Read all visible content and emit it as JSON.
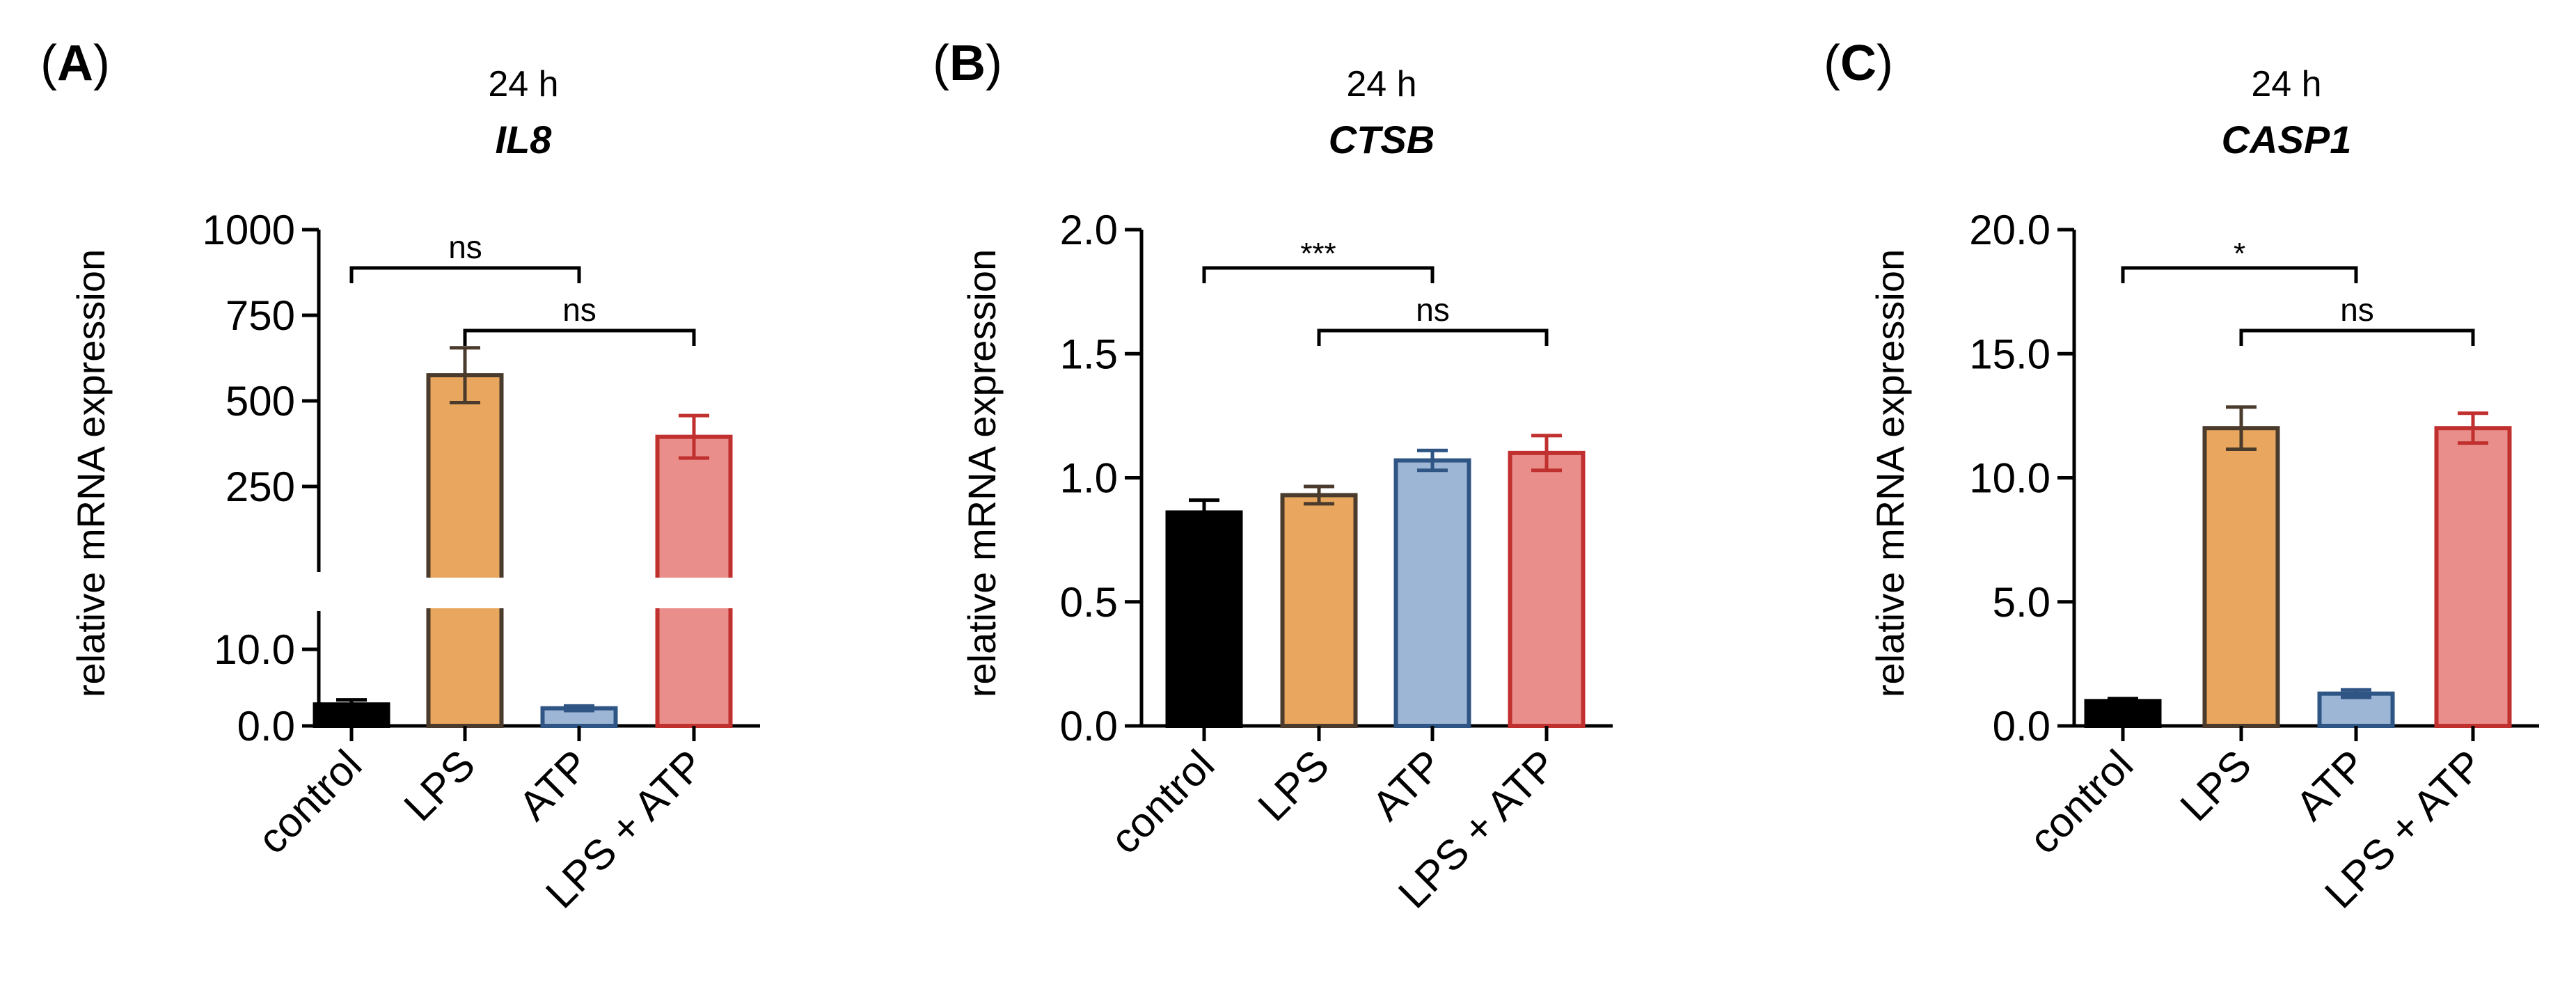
{
  "chart_data": [
    {
      "type": "bar",
      "panel": "A",
      "timepoint": "24 h",
      "title": "IL8",
      "ylabel": "relative mRNA expression",
      "categories": [
        "control",
        "LPS",
        "ATP",
        "LPS + ATP"
      ],
      "values": [
        2.8,
        575,
        2.3,
        395
      ],
      "errors": [
        0.6,
        80,
        0.3,
        62
      ],
      "colors": [
        "#000000",
        "#E8A65E",
        "#9DB6D6",
        "#E98E8A"
      ],
      "edge_colors": [
        "#000000",
        "#4A3B2C",
        "#2F5584",
        "#C0302F"
      ],
      "axis_break": true,
      "lower_range": [
        0,
        15
      ],
      "upper_range": [
        0,
        1000
      ],
      "lower_ticks": [
        {
          "value": 0,
          "label": "0.0"
        },
        {
          "value": 10,
          "label": "10.0"
        }
      ],
      "upper_ticks": [
        {
          "value": 250,
          "label": "250"
        },
        {
          "value": 500,
          "label": "500"
        },
        {
          "value": 750,
          "label": "750"
        },
        {
          "value": 1000,
          "label": "1000"
        }
      ],
      "comparisons": [
        {
          "from": 0,
          "to": 2,
          "label": "ns"
        },
        {
          "from": 1,
          "to": 3,
          "label": "ns"
        }
      ]
    },
    {
      "type": "bar",
      "panel": "B",
      "timepoint": "24 h",
      "title": "CTSB",
      "ylabel": "relative mRNA expression",
      "categories": [
        "control",
        "LPS",
        "ATP",
        "LPS + ATP"
      ],
      "values": [
        0.86,
        0.93,
        1.07,
        1.1
      ],
      "errors": [
        0.05,
        0.035,
        0.04,
        0.07
      ],
      "colors": [
        "#000000",
        "#E8A65E",
        "#9DB6D6",
        "#E98E8A"
      ],
      "edge_colors": [
        "#000000",
        "#4A3B2C",
        "#2F5584",
        "#C0302F"
      ],
      "axis_break": false,
      "ylim": [
        0,
        2.0
      ],
      "ticks": [
        {
          "value": 0,
          "label": "0.0"
        },
        {
          "value": 0.5,
          "label": "0.5"
        },
        {
          "value": 1.0,
          "label": "1.0"
        },
        {
          "value": 1.5,
          "label": "1.5"
        },
        {
          "value": 2.0,
          "label": "2.0"
        }
      ],
      "comparisons": [
        {
          "from": 0,
          "to": 2,
          "label": "***"
        },
        {
          "from": 1,
          "to": 3,
          "label": "ns"
        }
      ]
    },
    {
      "type": "bar",
      "panel": "C",
      "timepoint": "24 h",
      "title": "CASP1",
      "ylabel": "relative mRNA expression",
      "categories": [
        "control",
        "LPS",
        "ATP",
        "LPS + ATP"
      ],
      "values": [
        1.0,
        12.0,
        1.3,
        12.0
      ],
      "errors": [
        0.1,
        0.85,
        0.15,
        0.6
      ],
      "colors": [
        "#000000",
        "#E8A65E",
        "#9DB6D6",
        "#E98E8A"
      ],
      "edge_colors": [
        "#000000",
        "#4A3B2C",
        "#2F5584",
        "#C0302F"
      ],
      "axis_break": false,
      "ylim": [
        0,
        20.0
      ],
      "ticks": [
        {
          "value": 0,
          "label": "0.0"
        },
        {
          "value": 5,
          "label": "5.0"
        },
        {
          "value": 10,
          "label": "10.0"
        },
        {
          "value": 15,
          "label": "15.0"
        },
        {
          "value": 20,
          "label": "20.0"
        }
      ],
      "comparisons": [
        {
          "from": 0,
          "to": 2,
          "label": "*"
        },
        {
          "from": 1,
          "to": 3,
          "label": "ns"
        }
      ]
    }
  ]
}
